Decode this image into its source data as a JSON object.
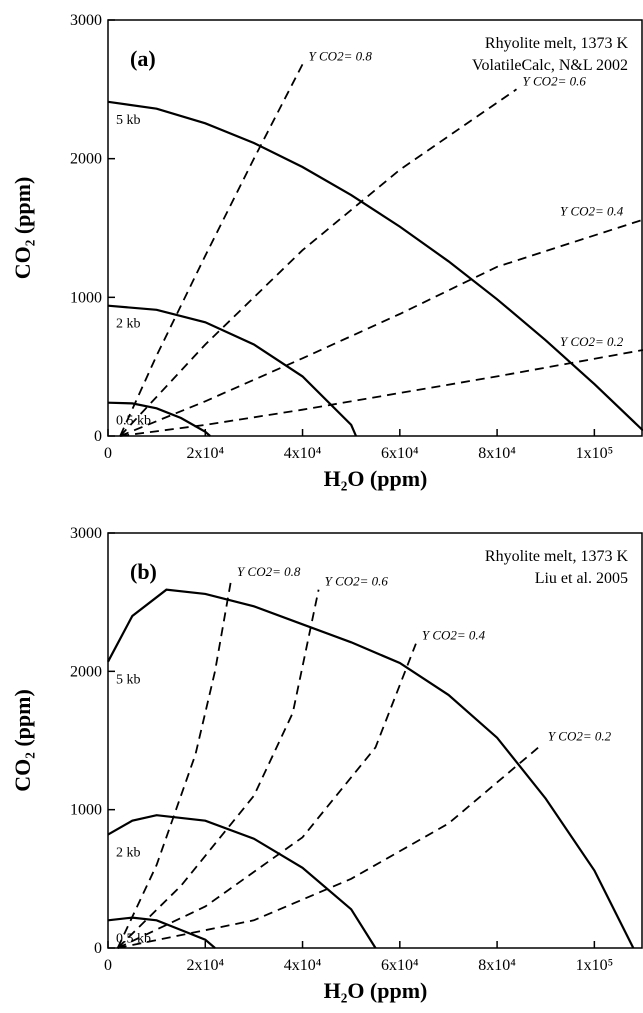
{
  "chart_data": [
    {
      "type": "line",
      "panel_label": "(a)",
      "annotations": [
        "Rhyolite melt, 1373 K",
        "VolatileCalc, N&L 2002"
      ],
      "x_label": "H₂O (ppm)",
      "y_label": "CO₂ (ppm)",
      "xlim": [
        0,
        110000
      ],
      "ylim": [
        0,
        3000
      ],
      "xticks": [
        0,
        {
          "value": 20000,
          "label": "2x10⁴"
        },
        {
          "value": 40000,
          "label": "4x10⁴"
        },
        {
          "value": 60000,
          "label": "6x10⁴"
        },
        {
          "value": 80000,
          "label": "8x10⁴"
        },
        {
          "value": 100000,
          "label": "1x10⁵"
        }
      ],
      "yticks": [
        0,
        1000,
        2000,
        3000
      ],
      "series": [
        {
          "name": "5 kb",
          "color": "#000000",
          "dash": false,
          "x": [
            0,
            10000,
            20000,
            30000,
            40000,
            50000,
            60000,
            70000,
            80000,
            90000,
            100000,
            110000
          ],
          "values": [
            2410,
            2360,
            2255,
            2113,
            1940,
            1737,
            1510,
            1260,
            986,
            690,
            374,
            40
          ]
        },
        {
          "name": "2 kb",
          "color": "#000000",
          "dash": false,
          "x": [
            0,
            10000,
            20000,
            30000,
            40000,
            50000,
            51000
          ],
          "values": [
            940,
            910,
            820,
            660,
            430,
            80,
            0
          ]
        },
        {
          "name": "0.5 kb",
          "color": "#000000",
          "dash": false,
          "x": [
            0,
            5000,
            10000,
            15000,
            20000,
            21000
          ],
          "values": [
            240,
            235,
            200,
            130,
            30,
            0
          ]
        },
        {
          "name": "Y CO2= 0.8",
          "color": "#000000",
          "dash": true,
          "x": [
            2500,
            10000,
            20000,
            30000,
            40000
          ],
          "values": [
            0,
            580,
            1300,
            2000,
            2680
          ]
        },
        {
          "name": "Y CO2= 0.6",
          "color": "#000000",
          "dash": true,
          "x": [
            2500,
            20000,
            40000,
            60000,
            84000
          ],
          "values": [
            0,
            660,
            1340,
            1920,
            2500
          ]
        },
        {
          "name": "Y CO2= 0.4",
          "color": "#000000",
          "dash": true,
          "x": [
            2500,
            20000,
            40000,
            60000,
            80000,
            110000
          ],
          "values": [
            0,
            250,
            560,
            880,
            1220,
            1560
          ]
        },
        {
          "name": "Y CO2= 0.2",
          "color": "#000000",
          "dash": true,
          "x": [
            2500,
            20000,
            40000,
            60000,
            80000,
            110000
          ],
          "values": [
            0,
            80,
            190,
            310,
            430,
            620
          ]
        }
      ]
    },
    {
      "type": "line",
      "panel_label": "(b)",
      "annotations": [
        "Rhyolite melt, 1373 K",
        "Liu et al. 2005"
      ],
      "x_label": "H₂O (ppm)",
      "y_label": "CO₂ (ppm)",
      "xlim": [
        0,
        110000
      ],
      "ylim": [
        0,
        3000
      ],
      "xticks": [
        0,
        {
          "value": 20000,
          "label": "2x10⁴"
        },
        {
          "value": 40000,
          "label": "4x10⁴"
        },
        {
          "value": 60000,
          "label": "6x10⁴"
        },
        {
          "value": 80000,
          "label": "8x10⁴"
        },
        {
          "value": 100000,
          "label": "1x10⁵"
        }
      ],
      "yticks": [
        0,
        1000,
        2000,
        3000
      ],
      "series": [
        {
          "name": "5 kb",
          "color": "#000000",
          "dash": false,
          "x": [
            0,
            5000,
            12000,
            20000,
            30000,
            40000,
            50000,
            60000,
            70000,
            80000,
            90000,
            100000,
            108000
          ],
          "values": [
            2070,
            2400,
            2590,
            2560,
            2470,
            2340,
            2210,
            2060,
            1830,
            1520,
            1080,
            560,
            0
          ]
        },
        {
          "name": "2 kb",
          "color": "#000000",
          "dash": false,
          "x": [
            0,
            5000,
            10000,
            20000,
            30000,
            40000,
            50000,
            55000
          ],
          "values": [
            820,
            920,
            960,
            920,
            790,
            580,
            280,
            0
          ]
        },
        {
          "name": "0.5 kb",
          "color": "#000000",
          "dash": false,
          "x": [
            0,
            5000,
            10000,
            15000,
            20000,
            22000
          ],
          "values": [
            200,
            220,
            200,
            130,
            60,
            0
          ]
        },
        {
          "name": "Y CO2= 0.8",
          "color": "#000000",
          "dash": true,
          "x": [
            2000,
            10000,
            18000,
            22000,
            25300
          ],
          "values": [
            0,
            600,
            1400,
            2000,
            2660
          ]
        },
        {
          "name": "Y CO2= 0.6",
          "color": "#000000",
          "dash": true,
          "x": [
            2000,
            15000,
            30000,
            38000,
            43300
          ],
          "values": [
            0,
            450,
            1100,
            1700,
            2590
          ]
        },
        {
          "name": "Y CO2= 0.4",
          "color": "#000000",
          "dash": true,
          "x": [
            2000,
            20000,
            40000,
            55000,
            63300
          ],
          "values": [
            0,
            300,
            800,
            1450,
            2200
          ]
        },
        {
          "name": "Y CO2= 0.2",
          "color": "#000000",
          "dash": true,
          "x": [
            2000,
            30000,
            50000,
            70000,
            89200
          ],
          "values": [
            0,
            200,
            500,
            900,
            1470
          ]
        }
      ]
    }
  ]
}
